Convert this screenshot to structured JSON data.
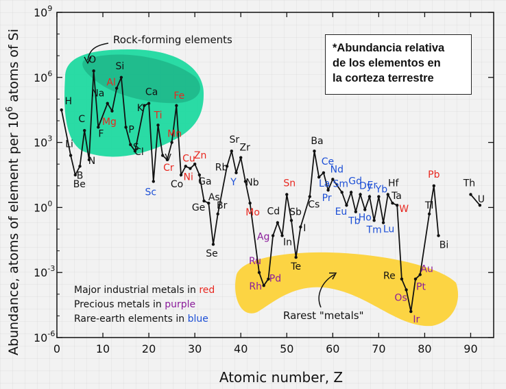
{
  "note": {
    "line1": "*Abundancia relativa",
    "line2": "de los elementos en",
    "line3": "la corteza terrestre"
  },
  "legend": {
    "line1_prefix": "Major industrial metals in ",
    "line1_color_word": "red",
    "line2_prefix": "Precious metals in ",
    "line2_color_word": "purple",
    "line3_prefix": "Rare-earth elements in ",
    "line3_color_word": "blue"
  },
  "colors": {
    "industrial": "#e8271f",
    "precious": "#8a1b9a",
    "rare_earth": "#1c4fd6",
    "normal": "#111111",
    "rock_region": "#1fd9a0",
    "rock_region_dark": "#17a27a",
    "rare_region": "#fcd443"
  },
  "chart_data": {
    "type": "line",
    "xlabel": "Atomic number, Z",
    "ylabel": "Abundance, atoms of element per 10^6 atoms of Si",
    "xlim": [
      0,
      95
    ],
    "ylim_log10": [
      -6,
      9
    ],
    "y_scale": "log",
    "x_ticks": [
      0,
      10,
      20,
      30,
      40,
      50,
      60,
      70,
      80,
      90
    ],
    "y_ticks_exp": [
      -6,
      -3,
      0,
      3,
      6,
      9
    ],
    "grid": false,
    "region_labels": {
      "rock": "Rock-forming elements",
      "rare": "Rarest \"metals\""
    },
    "series": [
      {
        "points": [
          {
            "z": 1,
            "s": "H",
            "logy": 4.5,
            "cat": "n"
          },
          {
            "z": 3,
            "s": "Li",
            "logy": 2.4,
            "cat": "n"
          },
          {
            "z": 4,
            "s": "Be",
            "logy": 1.5,
            "cat": "n"
          },
          {
            "z": 5,
            "s": "B",
            "logy": 1.9,
            "cat": "n"
          },
          {
            "z": 6,
            "s": "C",
            "logy": 3.55,
            "cat": "n"
          },
          {
            "z": 7,
            "s": "N",
            "logy": 2.2,
            "cat": "n"
          },
          {
            "z": 8,
            "s": "O",
            "logy": 6.3,
            "cat": "n"
          },
          {
            "z": 9,
            "s": "F",
            "logy": 3.7,
            "cat": "n"
          },
          {
            "z": 11,
            "s": "Na",
            "logy": 4.8,
            "cat": "n"
          },
          {
            "z": 12,
            "s": "Mg",
            "logy": 4.45,
            "cat": "i"
          },
          {
            "z": 13,
            "s": "Al",
            "logy": 5.5,
            "cat": "i"
          },
          {
            "z": 14,
            "s": "Si",
            "logy": 6.0,
            "cat": "n"
          },
          {
            "z": 15,
            "s": "P",
            "logy": 3.7,
            "cat": "n"
          },
          {
            "z": 16,
            "s": "S",
            "logy": 2.9,
            "cat": "n"
          },
          {
            "z": 17,
            "s": "Cl",
            "logy": 2.6,
            "cat": "n"
          },
          {
            "z": 19,
            "s": "K",
            "logy": 4.7,
            "cat": "n"
          },
          {
            "z": 20,
            "s": "Ca",
            "logy": 4.8,
            "cat": "n"
          },
          {
            "z": 21,
            "s": "Sc",
            "logy": 1.2,
            "cat": "r"
          },
          {
            "z": 22,
            "s": "Ti",
            "logy": 3.8,
            "cat": "i"
          },
          {
            "z": 23,
            "s": "V",
            "logy": 2.4,
            "cat": "n"
          },
          {
            "z": 24,
            "s": "Cr",
            "logy": 2.2,
            "cat": "i"
          },
          {
            "z": 25,
            "s": "Mn",
            "logy": 3.0,
            "cat": "i"
          },
          {
            "z": 26,
            "s": "Fe",
            "logy": 4.7,
            "cat": "i"
          },
          {
            "z": 27,
            "s": "Co",
            "logy": 1.5,
            "cat": "n"
          },
          {
            "z": 28,
            "s": "Ni",
            "logy": 1.9,
            "cat": "i"
          },
          {
            "z": 29,
            "s": "Cu",
            "logy": 1.8,
            "cat": "i"
          },
          {
            "z": 30,
            "s": "Zn",
            "logy": 2.0,
            "cat": "i"
          },
          {
            "z": 31,
            "s": "Ga",
            "logy": 1.5,
            "cat": "n"
          },
          {
            "z": 32,
            "s": "Ge",
            "logy": 0.3,
            "cat": "n"
          },
          {
            "z": 33,
            "s": "As",
            "logy": 0.2,
            "cat": "n"
          },
          {
            "z": 34,
            "s": "Se",
            "logy": -1.7,
            "cat": "n"
          },
          {
            "z": 35,
            "s": "Br",
            "logy": -0.3,
            "cat": "n"
          },
          {
            "z": 37,
            "s": "Rb",
            "logy": 1.9,
            "cat": "n"
          },
          {
            "z": 38,
            "s": "Sr",
            "logy": 2.6,
            "cat": "n"
          },
          {
            "z": 39,
            "s": "Y",
            "logy": 1.6,
            "cat": "r"
          },
          {
            "z": 40,
            "s": "Zr",
            "logy": 2.3,
            "cat": "n"
          },
          {
            "z": 41,
            "s": "Nb",
            "logy": 1.2,
            "cat": "n"
          },
          {
            "z": 42,
            "s": "Mo",
            "logy": 0.2,
            "cat": "i"
          },
          {
            "z": 44,
            "s": "Ru",
            "logy": -3.0,
            "cat": "p"
          },
          {
            "z": 45,
            "s": "Rh",
            "logy": -3.6,
            "cat": "p"
          },
          {
            "z": 46,
            "s": "Pd",
            "logy": -3.3,
            "cat": "p"
          },
          {
            "z": 47,
            "s": "Ag",
            "logy": -1.3,
            "cat": "p"
          },
          {
            "z": 48,
            "s": "Cd",
            "logy": -0.7,
            "cat": "n"
          },
          {
            "z": 49,
            "s": "In",
            "logy": -1.3,
            "cat": "n"
          },
          {
            "z": 50,
            "s": "Sn",
            "logy": 0.6,
            "cat": "i"
          },
          {
            "z": 51,
            "s": "Sb",
            "logy": -0.6,
            "cat": "n"
          },
          {
            "z": 52,
            "s": "Te",
            "logy": -2.3,
            "cat": "n"
          },
          {
            "z": 53,
            "s": "I",
            "logy": -0.9,
            "cat": "n"
          },
          {
            "z": 55,
            "s": "Cs",
            "logy": 0.5,
            "cat": "n"
          },
          {
            "z": 56,
            "s": "Ba",
            "logy": 2.6,
            "cat": "n"
          },
          {
            "z": 57,
            "s": "La",
            "logy": 1.4,
            "cat": "r"
          },
          {
            "z": 58,
            "s": "Ce",
            "logy": 1.6,
            "cat": "r"
          },
          {
            "z": 59,
            "s": "Pr",
            "logy": 0.8,
            "cat": "r"
          },
          {
            "z": 60,
            "s": "Nd",
            "logy": 1.3,
            "cat": "r"
          },
          {
            "z": 62,
            "s": "Sm",
            "logy": 0.7,
            "cat": "r"
          },
          {
            "z": 63,
            "s": "Eu",
            "logy": 0.1,
            "cat": "r"
          },
          {
            "z": 64,
            "s": "Gd",
            "logy": 0.7,
            "cat": "r"
          },
          {
            "z": 65,
            "s": "Tb",
            "logy": -0.2,
            "cat": "r"
          },
          {
            "z": 66,
            "s": "Dy",
            "logy": 0.6,
            "cat": "r"
          },
          {
            "z": 67,
            "s": "Ho",
            "logy": -0.1,
            "cat": "r"
          },
          {
            "z": 68,
            "s": "Er",
            "logy": 0.5,
            "cat": "r"
          },
          {
            "z": 69,
            "s": "Tm",
            "logy": -0.6,
            "cat": "r"
          },
          {
            "z": 70,
            "s": "Yb",
            "logy": 0.5,
            "cat": "r"
          },
          {
            "z": 71,
            "s": "Lu",
            "logy": -0.7,
            "cat": "r"
          },
          {
            "z": 72,
            "s": "Hf",
            "logy": 0.6,
            "cat": "n"
          },
          {
            "z": 73,
            "s": "Ta",
            "logy": 0.2,
            "cat": "n"
          },
          {
            "z": 74,
            "s": "W",
            "logy": 0.1,
            "cat": "i"
          },
          {
            "z": 75,
            "s": "Re",
            "logy": -3.3,
            "cat": "n"
          },
          {
            "z": 76,
            "s": "Os",
            "logy": -3.8,
            "cat": "p"
          },
          {
            "z": 77,
            "s": "Ir",
            "logy": -4.8,
            "cat": "p"
          },
          {
            "z": 78,
            "s": "Pt",
            "logy": -3.3,
            "cat": "p"
          },
          {
            "z": 79,
            "s": "Au",
            "logy": -3.1,
            "cat": "p"
          },
          {
            "z": 81,
            "s": "Tl",
            "logy": -0.3,
            "cat": "n"
          },
          {
            "z": 82,
            "s": "Pb",
            "logy": 1.0,
            "cat": "i"
          },
          {
            "z": 83,
            "s": "Bi",
            "logy": -1.3,
            "cat": "n"
          },
          {
            "z": 90,
            "s": "Th",
            "logy": 0.6,
            "cat": "n"
          },
          {
            "z": 92,
            "s": "U",
            "logy": 0.1,
            "cat": "n"
          }
        ]
      }
    ]
  }
}
